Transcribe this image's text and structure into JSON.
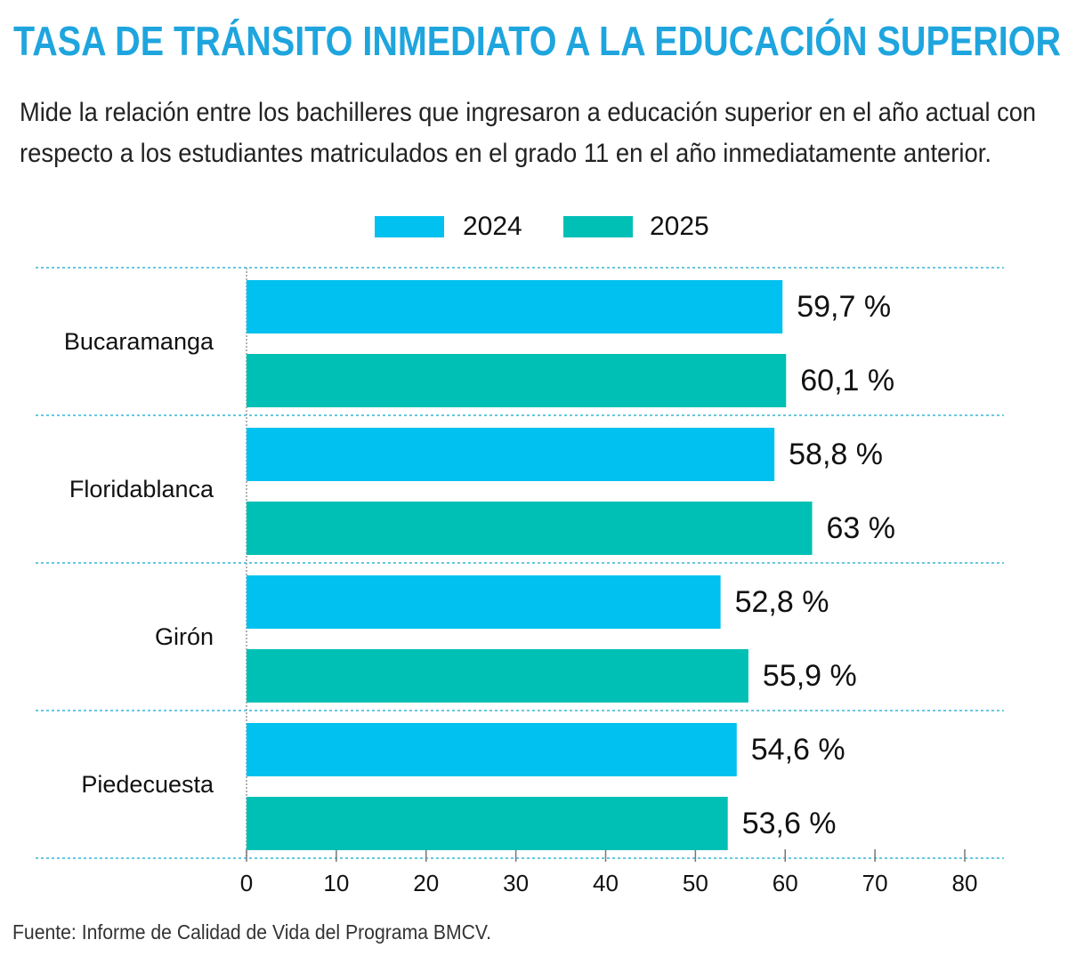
{
  "chart_data": {
    "type": "hbar",
    "title": "TASA DE TRÁNSITO INMEDIATO A LA EDUCACIÓN SUPERIOR",
    "subtitle": [
      "Mide la relación entre los bachilleres que ingresaron a educación superior en el año actual con",
      "respecto a los estudiantes matriculados en el grado 11 en el año inmediatamente anterior."
    ],
    "categories": [
      "Bucaramanga",
      "Floridablanca",
      "Girón",
      "Piedecuesta"
    ],
    "series": [
      {
        "name": "2024",
        "color": "#00c1ef",
        "values": [
          59.7,
          58.8,
          52.8,
          54.6
        ],
        "value_labels": [
          "59,7 %",
          "58,8 %",
          "52,8 %",
          "54,6 %"
        ]
      },
      {
        "name": "2025",
        "color": "#00bfb4",
        "values": [
          60.1,
          63,
          55.9,
          53.6
        ],
        "value_labels": [
          "60,1 %",
          "63 %",
          "55,9 %",
          "53,6 %"
        ]
      }
    ],
    "xlim": [
      0,
      80
    ],
    "xticks": [
      0,
      10,
      20,
      30,
      40,
      50,
      60,
      70,
      80
    ],
    "source": "Fuente: Informe de Calidad de Vida del  Programa BMCV."
  }
}
